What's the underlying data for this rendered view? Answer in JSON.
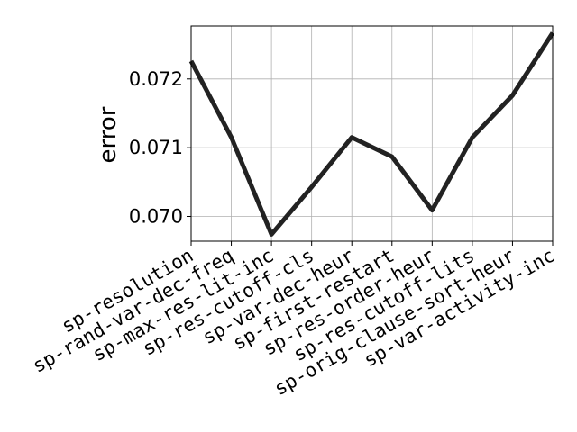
{
  "chart_data": {
    "type": "line",
    "title": "",
    "xlabel": "",
    "ylabel": "error",
    "categories": [
      "sp-resolution",
      "sp-rand-var-dec-freq",
      "sp-max-res-lit-inc",
      "sp-res-cutoff-cls",
      "sp-var-dec-heur",
      "sp-first-restart",
      "sp-res-order-heur",
      "sp-res-cutoff-lits",
      "sp-orig-clause-sort-heur",
      "sp-var-activity-inc"
    ],
    "series": [
      {
        "values": [
          0.07226,
          0.07115,
          0.06974,
          0.07043,
          0.07115,
          0.07087,
          0.07009,
          0.07115,
          0.07176,
          0.07267
        ]
      }
    ],
    "ylim": [
      0.06964,
      0.07277
    ],
    "yticks": [
      0.07,
      0.071,
      0.072
    ],
    "ytick_labels": [
      "0.070",
      "0.071",
      "0.072"
    ],
    "grid": true,
    "line_color": "#222222"
  }
}
